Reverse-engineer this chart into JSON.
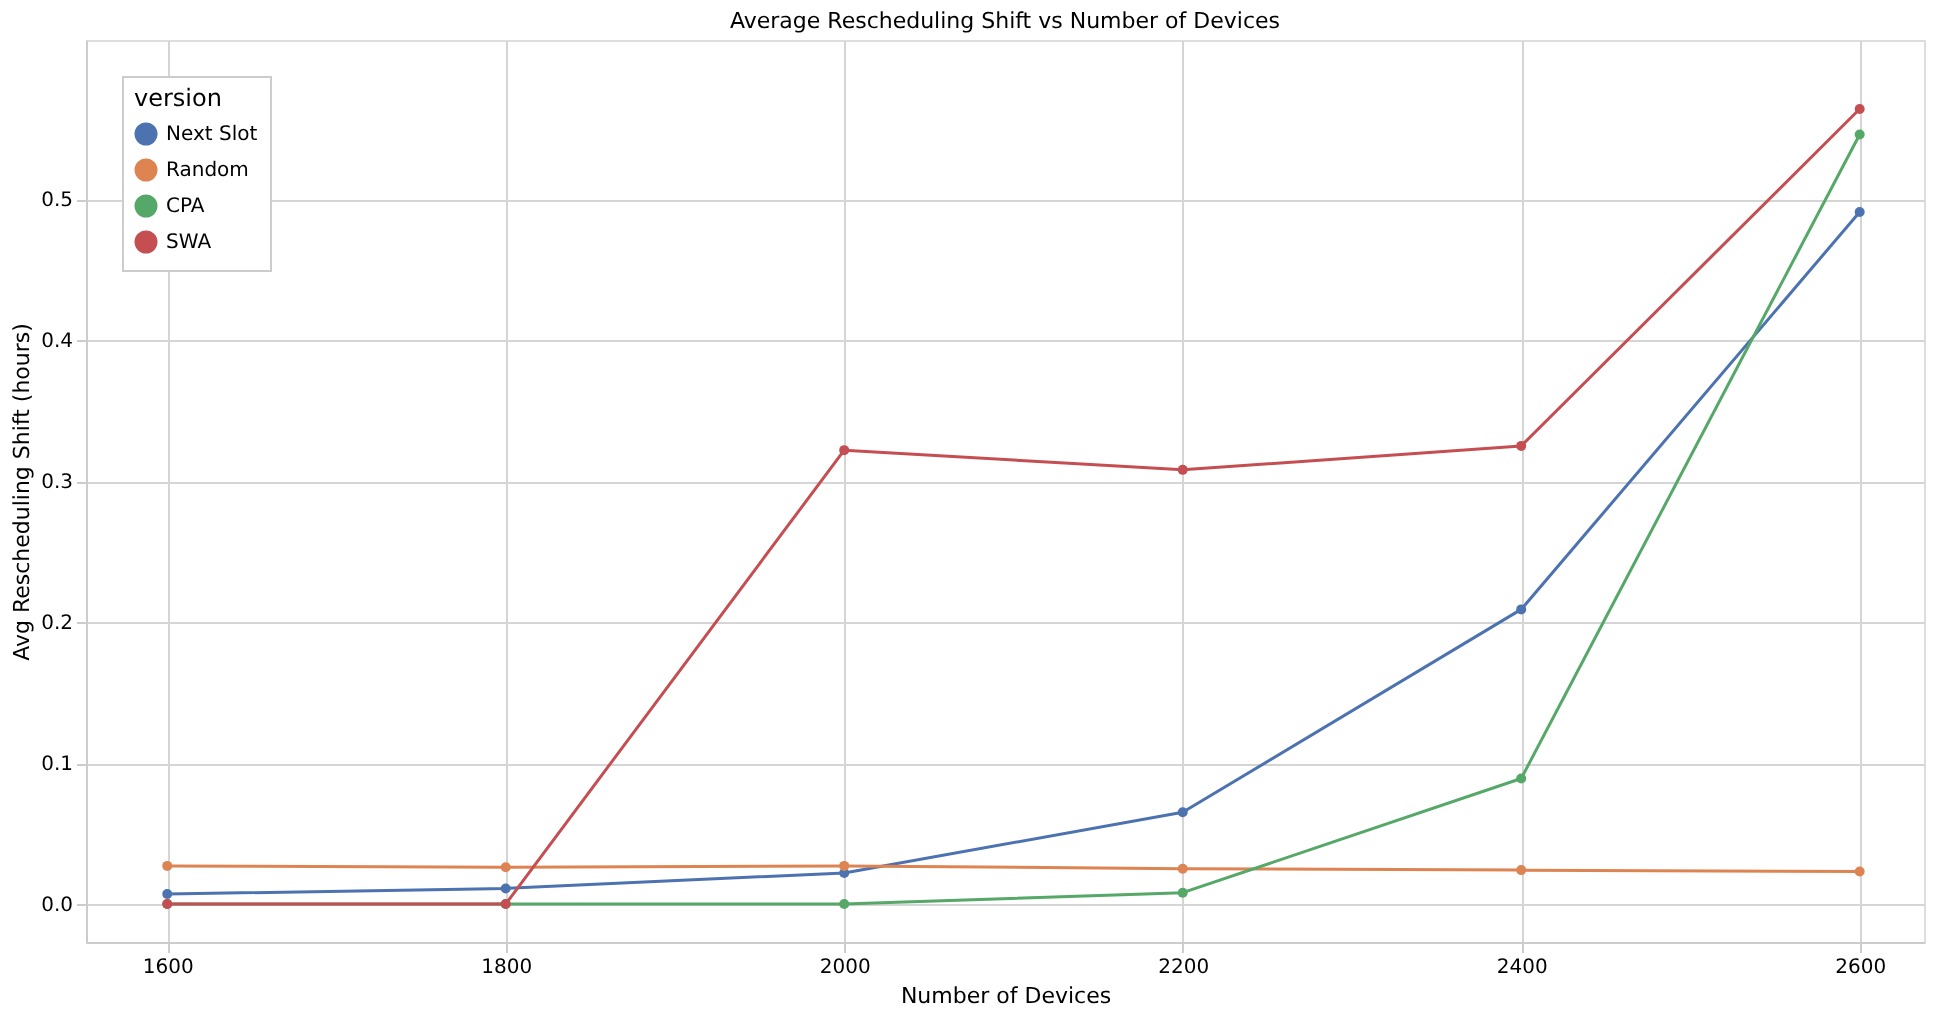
{
  "chart_data": {
    "type": "line",
    "title": "Average Rescheduling Shift vs Number of Devices",
    "xlabel": "Number of Devices",
    "ylabel": "Avg Rescheduling Shift (hours)",
    "legend_title": "version",
    "x": [
      1600,
      1800,
      2000,
      2200,
      2400,
      2600
    ],
    "series": [
      {
        "name": "Next Slot",
        "color": "#4c72b0",
        "values": [
          0.007,
          0.011,
          0.022,
          0.065,
          0.209,
          0.491
        ]
      },
      {
        "name": "Random",
        "color": "#dd8452",
        "values": [
          0.027,
          0.026,
          0.027,
          0.025,
          0.024,
          0.023
        ]
      },
      {
        "name": "CPA",
        "color": "#55a868",
        "values": [
          0.0,
          0.0,
          0.0,
          0.008,
          0.089,
          0.546
        ]
      },
      {
        "name": "SWA",
        "color": "#c44e52",
        "values": [
          0.0,
          0.0,
          0.322,
          0.308,
          0.325,
          0.564
        ]
      }
    ],
    "xlim": [
      1552,
      2638
    ],
    "xticks": [
      1600,
      1800,
      2000,
      2200,
      2400,
      2600
    ],
    "ylim": [
      -0.027,
      0.613
    ],
    "yticks": [
      {
        "value": 0,
        "label": "0.0"
      },
      {
        "value": 0.1,
        "label": "0.1"
      },
      {
        "value": 0.2,
        "label": "0.2"
      },
      {
        "value": 0.3,
        "label": "0.3"
      },
      {
        "value": 0.4,
        "label": "0.4"
      },
      {
        "value": 0.5,
        "label": "0.5"
      }
    ],
    "grid": true,
    "legend": "top left",
    "marker": "circle",
    "line_style": "solid"
  }
}
